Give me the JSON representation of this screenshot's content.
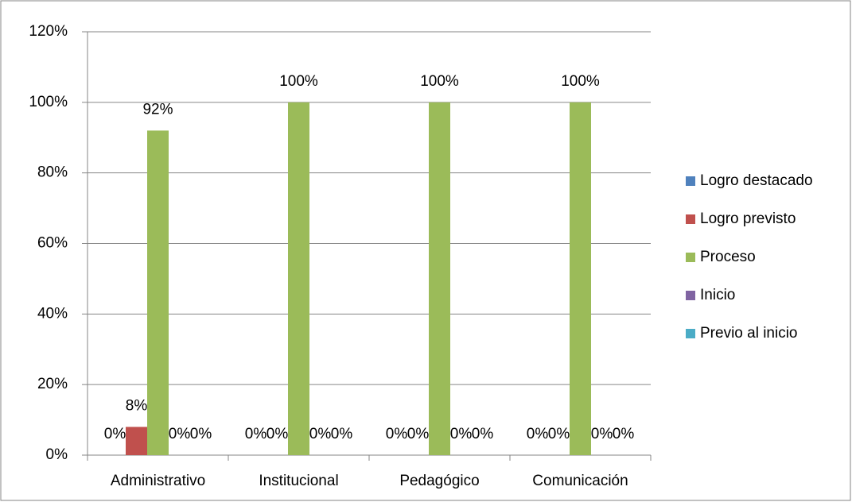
{
  "chart_data": {
    "type": "bar",
    "categories": [
      "Administrativo",
      "Institucional",
      "Pedagógico",
      "Comunicación"
    ],
    "series": [
      {
        "name": "Logro destacado",
        "color": "#4f81bd",
        "values": [
          0,
          0,
          0,
          0
        ],
        "value_labels": [
          "0%",
          "0%",
          "0%",
          "0%"
        ]
      },
      {
        "name": "Logro previsto",
        "color": "#c0504d",
        "values": [
          8,
          0,
          0,
          0
        ],
        "value_labels": [
          "8%",
          "0%",
          "0%",
          "0%"
        ]
      },
      {
        "name": "Proceso",
        "color": "#9bbb59",
        "values": [
          92,
          100,
          100,
          100
        ],
        "value_labels": [
          "92%",
          "100%",
          "100%",
          "100%"
        ]
      },
      {
        "name": "Inicio",
        "color": "#8064a2",
        "values": [
          0,
          0,
          0,
          0
        ],
        "value_labels": [
          "0%",
          "0%",
          "0%",
          "0%"
        ]
      },
      {
        "name": "Previo al inicio",
        "color": "#4bacc6",
        "values": [
          0,
          0,
          0,
          0
        ],
        "value_labels": [
          "0%",
          "0%",
          "0%",
          "0%"
        ]
      }
    ],
    "ylim": [
      0,
      120
    ],
    "yticks": [
      {
        "value": 0,
        "label": "0%"
      },
      {
        "value": 20,
        "label": "20%"
      },
      {
        "value": 40,
        "label": "40%"
      },
      {
        "value": 60,
        "label": "60%"
      },
      {
        "value": 80,
        "label": "80%"
      },
      {
        "value": 100,
        "label": "100%"
      },
      {
        "value": 120,
        "label": "120%"
      }
    ],
    "grid": true,
    "legend": "right"
  }
}
